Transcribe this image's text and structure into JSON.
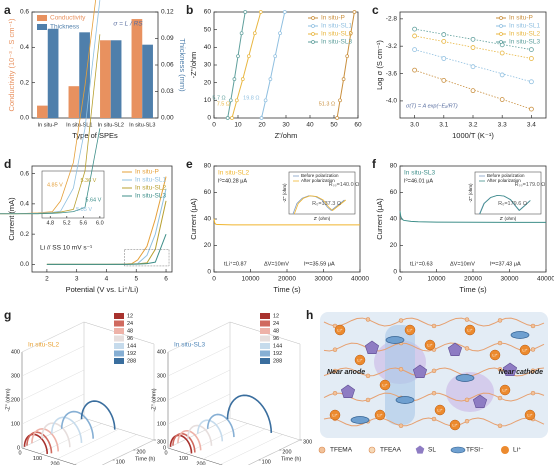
{
  "chart_data": [
    {
      "label": "a",
      "type": "bar",
      "categories": [
        "In situ-P",
        "In situ-SL1",
        "In situ-SL2",
        "In situ-SL3"
      ],
      "series": [
        {
          "name": "Conductivity",
          "color": "#e8915f",
          "values": [
            0.07,
            0.18,
            0.44,
            0.56
          ]
        },
        {
          "name": "Thickness",
          "color": "#4f7fab",
          "axis": "y2",
          "values": [
            0.101,
            0.097,
            0.088,
            0.083
          ]
        }
      ],
      "ylim": [
        0,
        0.6
      ],
      "yticks": [
        {
          "value": 0,
          "label": "0.0"
        },
        0.2,
        0.4,
        0.6
      ],
      "y2lim": [
        0,
        0.12
      ],
      "y2ticks": [
        {
          "value": 0,
          "label": "0.00"
        },
        0.03,
        0.06,
        0.09,
        0.12
      ],
      "xlabel": "Type of SPEs",
      "ylabel": "Conductivity (10⁻³ · S cm⁻¹)",
      "y2label": "Thickness (mm)",
      "annotation": "σ = L / RS",
      "legend": "top-left"
    },
    {
      "label": "b",
      "type": "line",
      "markers": true,
      "series": [
        {
          "name": "In situ-P",
          "color": "#c98f3e",
          "x": [
            51.3,
            52.5,
            54,
            55.5,
            57,
            58.5
          ],
          "values": [
            0,
            10,
            22,
            35,
            48,
            60
          ]
        },
        {
          "name": "In situ-SL1",
          "color": "#8fbfe0",
          "x": [
            19.8,
            21.5,
            23.5,
            25.5,
            27.5,
            29.5
          ],
          "values": [
            0,
            10,
            22,
            35,
            48,
            60
          ]
        },
        {
          "name": "In situ-SL2",
          "color": "#e8b640",
          "x": [
            7.5,
            9.5,
            12,
            14.5,
            17,
            19.5
          ],
          "values": [
            0,
            10,
            22,
            35,
            48,
            60
          ]
        },
        {
          "name": "In situ-SL3",
          "color": "#5f9f9c",
          "x": [
            5.7,
            7,
            8.5,
            10,
            11.5,
            13
          ],
          "values": [
            0,
            10,
            22,
            35,
            48,
            60
          ]
        }
      ],
      "annotations": [
        "51.3 Ω",
        "19.8 Ω",
        "7.5 Ω",
        "5.7 Ω"
      ],
      "xlim": [
        0,
        60
      ],
      "xticks": [
        0,
        10,
        20,
        30,
        40,
        50,
        60
      ],
      "ylim": [
        0,
        60
      ],
      "yticks": [
        0,
        10,
        20,
        30,
        40,
        50,
        60
      ],
      "xlabel": "Z'/ohm",
      "ylabel": "-Z''/ohm",
      "legend": "top-right"
    },
    {
      "label": "c",
      "type": "scatter",
      "x": [
        3.0,
        3.1,
        3.2,
        3.3,
        3.4
      ],
      "series": [
        {
          "name": "In situ-P",
          "color": "#c98f3e",
          "values": [
            -3.55,
            -3.7,
            -3.85,
            -3.98,
            -4.12
          ]
        },
        {
          "name": "In situ-SL1",
          "color": "#8fbfe0",
          "values": [
            -3.25,
            -3.38,
            -3.5,
            -3.62,
            -3.72
          ]
        },
        {
          "name": "In situ-SL2",
          "color": "#e8b640",
          "values": [
            -3.05,
            -3.13,
            -3.22,
            -3.3,
            -3.38
          ]
        },
        {
          "name": "In situ-SL3",
          "color": "#5f9f9c",
          "values": [
            -2.95,
            -3.03,
            -3.1,
            -3.18,
            -3.25
          ]
        }
      ],
      "xlim": [
        2.95,
        3.45
      ],
      "xticks": [
        {
          "value": 3,
          "label": "3.0"
        },
        3.1,
        3.2,
        3.3,
        3.4
      ],
      "ylim": [
        -4.25,
        -2.7
      ],
      "yticks": [
        {
          "value": -4,
          "label": "-4.0"
        },
        -3.6,
        -3.2,
        -2.8
      ],
      "xlabel": "1000/T (K⁻¹)",
      "ylabel": "Log σ (S cm⁻¹)",
      "annotation": "σ(T) = A exp(−Eₐ/RT)",
      "legend": "top-right"
    },
    {
      "label": "d",
      "type": "line",
      "x": [
        2,
        3,
        4,
        4.5,
        4.85,
        5.05,
        5.36,
        5.64,
        6
      ],
      "series": [
        {
          "name": "In situ-P",
          "color": "#e5a03a",
          "values": [
            0,
            0,
            0,
            0.002,
            0.005,
            0.03,
            0.12,
            0.3,
            0.58
          ]
        },
        {
          "name": "In situ-SL1",
          "color": "#8fc0e0",
          "values": [
            0,
            0,
            0,
            0.001,
            0.003,
            0.006,
            0.06,
            0.2,
            0.5
          ]
        },
        {
          "name": "In situ-SL2",
          "color": "#b8a030",
          "values": [
            0,
            0,
            0,
            0,
            0.002,
            0.004,
            0.01,
            0.1,
            0.42
          ]
        },
        {
          "name": "In situ-SL3",
          "color": "#3f8f8a",
          "values": [
            0,
            0,
            0,
            0,
            0.001,
            0.002,
            0.005,
            0.015,
            0.2
          ]
        }
      ],
      "xlim": [
        1.5,
        6.2
      ],
      "xticks": [
        2,
        3,
        4,
        5,
        6
      ],
      "ylim": [
        -0.05,
        0.65
      ],
      "yticks": [
        {
          "value": 0,
          "label": "0.0"
        },
        0.2,
        0.4,
        0.6
      ],
      "xlabel": "Potential (V vs. Li⁺/Li)",
      "ylabel": "Current (mA)",
      "annotation": "Li // SS   10 mV s⁻¹",
      "legend": "top-right",
      "inset": {
        "xlim": [
          4.6,
          6.1
        ],
        "xticks": [
          4.8,
          5.2,
          5.6,
          {
            "value": 6,
            "label": "6.0"
          }
        ],
        "ylim": [
          -0.01,
          0.1
        ],
        "labels": [
          "4.85 V",
          "5.05 V",
          "5.36 V",
          "5.64 V"
        ]
      }
    },
    {
      "label": "e",
      "type": "line",
      "title": "In situ-SL2",
      "x": [
        0,
        200,
        500,
        1000,
        5000,
        10000,
        20000,
        30000,
        40000
      ],
      "series": [
        {
          "color": "#f0b52e",
          "values": [
            40.28,
            37,
            36,
            35.8,
            35.6,
            35.6,
            35.6,
            35.6,
            35.59
          ]
        }
      ],
      "notes": [
        "I⁰=40.28 μA",
        "tLi⁺=0.87",
        "ΔV=10mV",
        "Iˢˢ=35.59 μA"
      ],
      "xlim": [
        0,
        40000
      ],
      "xticks": [
        0,
        10000,
        20000,
        30000,
        40000
      ],
      "ylim": [
        0,
        80
      ],
      "yticks": [
        0,
        20,
        40,
        60,
        80
      ],
      "xlabel": "Time (s)",
      "ylabel": "Current (μA)",
      "inset": {
        "xlim": [
          0,
          250
        ],
        "ylim": [
          0,
          120
        ],
        "xlabel": "Z' (ohm)",
        "ylabel": "-Z'' (ohm)",
        "series": [
          {
            "name": "Before polarization",
            "color": "#7f9cc4",
            "x": [
              15,
              30,
              50,
              75,
              100,
              125,
              145,
              160,
              185,
              210
            ],
            "values": [
              0,
              30,
              45,
              52,
              50,
              40,
              20,
              10,
              25,
              40
            ]
          },
          {
            "name": "After polarization",
            "color": "#f0b52e",
            "x": [
              20,
              35,
              55,
              80,
              105,
              130,
              150,
              165,
              190,
              215
            ],
            "values": [
              0,
              30,
              45,
              52,
              50,
              40,
              20,
              10,
              25,
              40
            ]
          }
        ],
        "labels": [
          "Rₛₛ=140.0 Ω",
          "R₀=137.3 Ω"
        ]
      }
    },
    {
      "label": "f",
      "type": "line",
      "title": "In situ-SL3",
      "x": [
        0,
        200,
        500,
        1000,
        3000,
        5000,
        10000,
        20000,
        30000,
        40000
      ],
      "series": [
        {
          "color": "#3f8f8a",
          "values": [
            46.01,
            42,
            40,
            39,
            38.2,
            37.9,
            37.6,
            37.5,
            37.45,
            37.43
          ]
        }
      ],
      "notes": [
        "I⁰=46.01 μA",
        "tLi⁺=0.63",
        "ΔV=10mV",
        "Iˢˢ=37.43 μA"
      ],
      "xlim": [
        0,
        40000
      ],
      "xticks": [
        0,
        10000,
        20000,
        30000,
        40000
      ],
      "ylim": [
        0,
        80
      ],
      "yticks": [
        0,
        20,
        40,
        60,
        80
      ],
      "xlabel": "Time (s)",
      "ylabel": "Current (μA)",
      "inset": {
        "xlim": [
          0,
          300
        ],
        "ylim": [
          0,
          140
        ],
        "xlabel": "Z' (ohm)",
        "ylabel": "-Z'' (ohm)",
        "series": [
          {
            "name": "Before polarization",
            "color": "#7f9cc4",
            "x": [
              20,
              40,
              70,
              100,
              130,
              160,
              185,
              200,
              225,
              250
            ],
            "values": [
              0,
              35,
              55,
              62,
              60,
              48,
              25,
              12,
              28,
              45
            ]
          },
          {
            "name": "After polarization",
            "color": "#3f8f8a",
            "x": [
              22,
              42,
              72,
              102,
              132,
              162,
              187,
              202,
              227,
              252
            ],
            "values": [
              0,
              35,
              55,
              62,
              60,
              48,
              25,
              12,
              28,
              45
            ]
          }
        ],
        "labels": [
          "Rₛₛ=179.0 Ω",
          "R₀=179.6 Ω"
        ]
      }
    },
    {
      "label": "g",
      "type": "nyquist3d",
      "times": [
        12,
        24,
        48,
        96,
        144,
        192,
        288
      ],
      "colors": [
        "#a8322e",
        "#d06a5f",
        "#eeb2a8",
        "#e6dedd",
        "#c6dbec",
        "#86afd4",
        "#3a6e9e"
      ],
      "xlabel": "Z' (ohm)",
      "ylabel": "Time (h)",
      "zlabel": "-Z'' (ohm)",
      "xlim": [
        0,
        400
      ],
      "xticks": [
        0,
        100,
        200,
        300,
        400
      ],
      "ylim": [
        0,
        300
      ],
      "yticks": [
        0,
        100,
        200,
        300
      ],
      "zlim": [
        0,
        400
      ],
      "zticks": [
        0,
        100,
        200,
        300,
        400
      ],
      "subplots": [
        {
          "title": "In situ-SL2",
          "color": "#e8a030",
          "diameters": [
            130,
            140,
            150,
            160,
            170,
            180,
            190
          ]
        },
        {
          "title": "In situ-SL3",
          "color": "#4f86b8",
          "diameters": [
            120,
            125,
            130,
            135,
            140,
            150,
            250
          ]
        }
      ]
    }
  ],
  "diagram": {
    "label": "h",
    "near_anode": "Near anode",
    "near_cathode": "Near cathode",
    "legend": [
      "TFEMA",
      "TFEAA",
      "SL",
      "TFSI⁻",
      "Li⁺"
    ]
  }
}
